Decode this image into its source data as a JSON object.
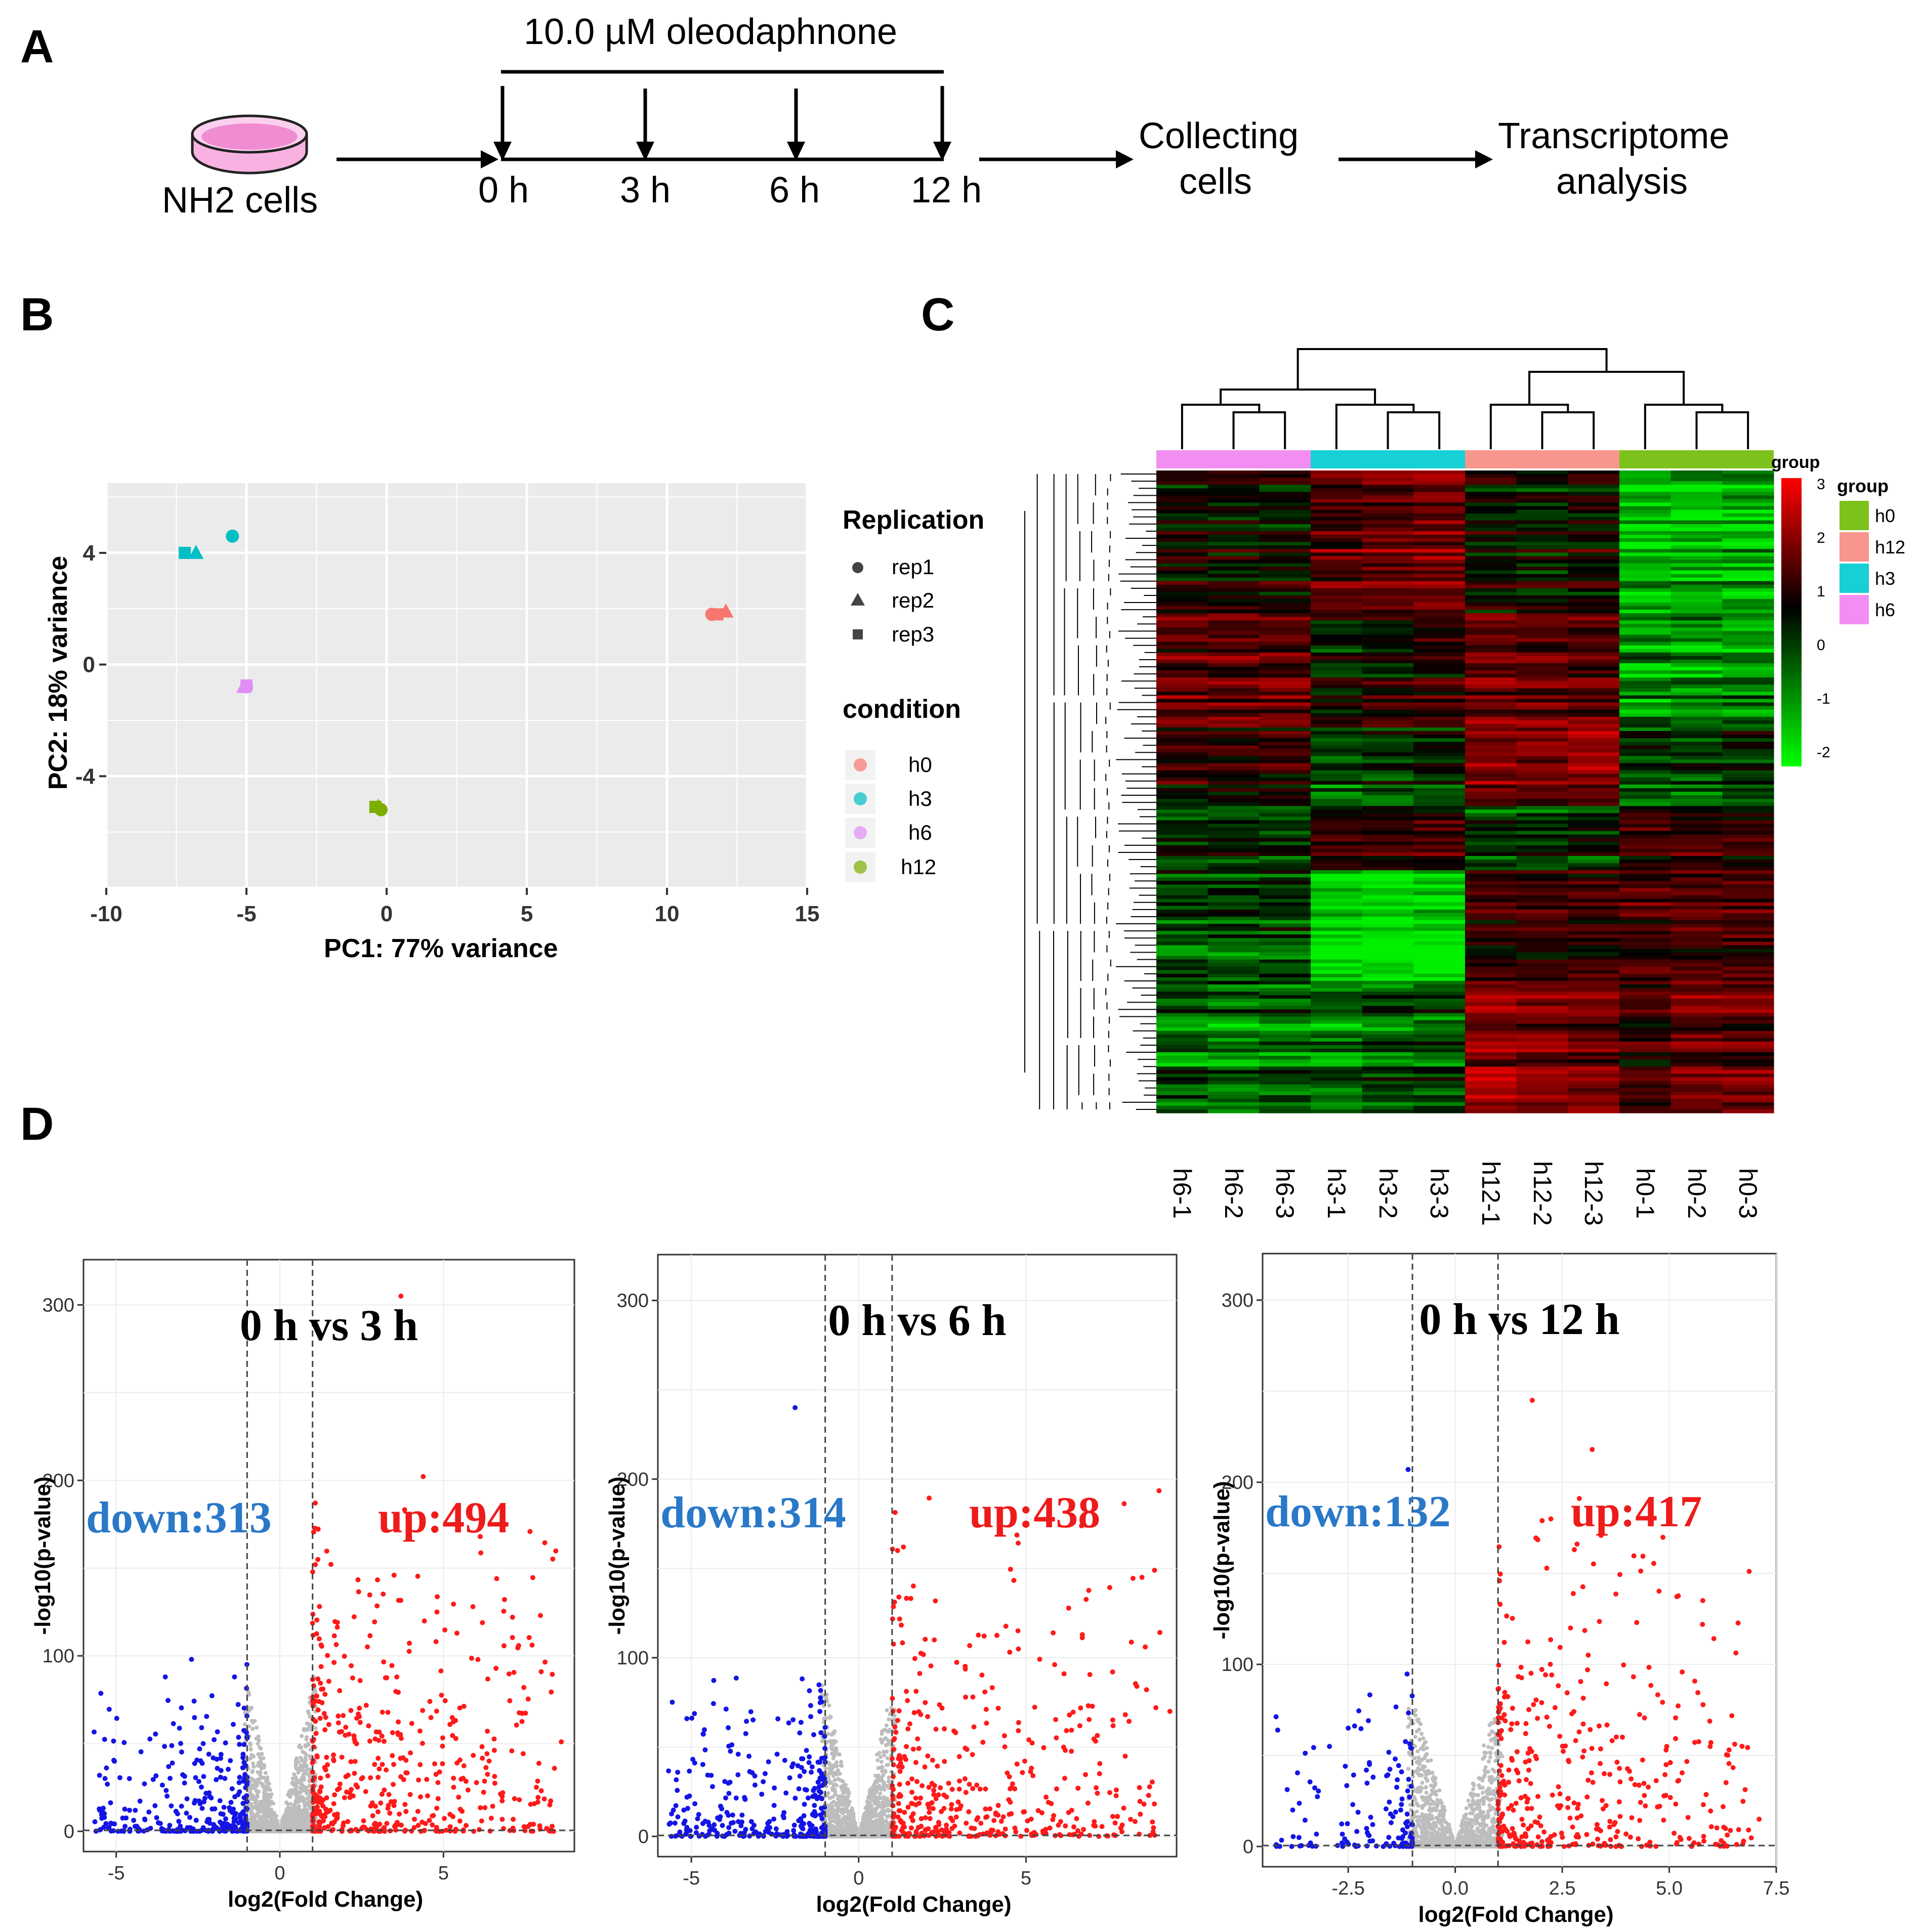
{
  "panels": {
    "A": "A",
    "B": "B",
    "C": "C",
    "D": "D"
  },
  "workflow": {
    "drug_label": "10.0 µM oleodaphnone",
    "cells_label": "NH2 cells",
    "timepoints": [
      "0 h",
      "3 h",
      "6 h",
      "12 h"
    ],
    "step1": [
      "Collecting",
      "cells"
    ],
    "step2": [
      "Transcriptome",
      "analysis"
    ],
    "dish_color": "#e85fc0"
  },
  "pca": {
    "xlabel": "PC1: 77% variance",
    "ylabel": "PC2: 18% variance",
    "xticks": [
      "-10",
      "-5",
      "0",
      "5",
      "10",
      "15"
    ],
    "yticks": [
      "4",
      "0",
      "-4"
    ],
    "legend_replication_title": "Replication",
    "replication": [
      "rep1",
      "rep2",
      "rep3"
    ],
    "legend_condition_title": "condition",
    "conditions": [
      {
        "name": "h0",
        "color": "#f8766d"
      },
      {
        "name": "h3",
        "color": "#00bfc4"
      },
      {
        "name": "h6",
        "color": "#e08ef5"
      },
      {
        "name": "h12",
        "color": "#7cae00"
      }
    ]
  },
  "heatmap": {
    "columns": [
      "h6-1",
      "h6-2",
      "h6-3",
      "h3-1",
      "h3-2",
      "h3-3",
      "h12-1",
      "h12-2",
      "h12-3",
      "h0-1",
      "h0-2",
      "h0-3"
    ],
    "group_label": "group",
    "scale_title": "group",
    "scale_ticks": [
      "3",
      "2",
      "1",
      "0",
      "-1",
      "-2"
    ],
    "groups": [
      {
        "name": "h0",
        "color": "#7cc21c"
      },
      {
        "name": "h12",
        "color": "#f7968c"
      },
      {
        "name": "h3",
        "color": "#16d0d6"
      },
      {
        "name": "h6",
        "color": "#f28ef2"
      }
    ]
  },
  "volcano": [
    {
      "title": "0 h vs 3 h",
      "down": "down:313",
      "up": "up:494",
      "xticks": [
        "-5",
        "0",
        "5"
      ],
      "yticks": [
        "0",
        "100",
        "200",
        "300"
      ]
    },
    {
      "title": "0 h vs 6 h",
      "down": "down:314",
      "up": "up:438",
      "xticks": [
        "-5",
        "0",
        "5"
      ],
      "yticks": [
        "0",
        "100",
        "200",
        "300"
      ]
    },
    {
      "title": "0 h vs 12 h",
      "down": "down:132",
      "up": "up:417",
      "xticks": [
        "-2.5",
        "0.0",
        "2.5",
        "5.0",
        "7.5"
      ],
      "yticks": [
        "0",
        "100",
        "200",
        "300"
      ]
    }
  ],
  "volcano_labels": {
    "xlabel": "log2(Fold Change)",
    "ylabel": "-log10(p-value)"
  },
  "chart_data": [
    {
      "type": "scatter",
      "title": "",
      "xlabel": "PC1: 77% variance",
      "ylabel": "PC2: 18% variance",
      "xlim": [
        -10,
        15
      ],
      "ylim": [
        -8,
        6.5
      ],
      "series": [
        {
          "name": "h0",
          "points": [
            [
              11.6,
              1.8
            ],
            [
              12.1,
              1.9
            ],
            [
              11.8,
              1.8
            ]
          ]
        },
        {
          "name": "h3",
          "points": [
            [
              -5.5,
              4.6
            ],
            [
              -6.8,
              4.0
            ],
            [
              -7.2,
              4.0
            ]
          ]
        },
        {
          "name": "h6",
          "points": [
            [
              -5.0,
              -0.8
            ],
            [
              -5.1,
              -0.8
            ],
            [
              -5.0,
              -0.75
            ]
          ]
        },
        {
          "name": "h12",
          "points": [
            [
              -0.2,
              -5.2
            ],
            [
              -0.3,
              -5.1
            ],
            [
              -0.4,
              -5.1
            ]
          ]
        }
      ]
    },
    {
      "type": "heatmap",
      "title": "",
      "columns": [
        "h6-1",
        "h6-2",
        "h6-3",
        "h3-1",
        "h3-2",
        "h3-3",
        "h12-1",
        "h12-2",
        "h12-3",
        "h0-1",
        "h0-2",
        "h0-3"
      ],
      "color_scale": [
        -2,
        3
      ]
    },
    {
      "type": "scatter",
      "title": "0 h vs 3 h",
      "xlabel": "log2(Fold Change)",
      "ylabel": "-log10(p-value)",
      "xlim": [
        -6,
        9
      ],
      "ylim": [
        0,
        320
      ],
      "thresholds_x": [
        -1,
        1
      ],
      "down": 313,
      "up": 494,
      "highlights": [
        [
          -3.5,
          88
        ],
        [
          -2.7,
          98
        ],
        [
          4.8,
          125
        ],
        [
          5.9,
          128
        ],
        [
          8.6,
          51
        ],
        [
          3.7,
          305
        ]
      ]
    },
    {
      "type": "scatter",
      "title": "0 h vs 6 h",
      "xlabel": "log2(Fold Change)",
      "ylabel": "-log10(p-value)",
      "xlim": [
        -6,
        9.5
      ],
      "ylim": [
        0,
        320
      ],
      "thresholds_x": [
        -1,
        1
      ],
      "down": 314,
      "up": 438,
      "highlights": [
        [
          -1.9,
          240
        ],
        [
          -3.6,
          46
        ],
        [
          5.6,
          22
        ],
        [
          7.7,
          26
        ],
        [
          9.3,
          70
        ]
      ]
    },
    {
      "type": "scatter",
      "title": "0 h vs 12 h",
      "xlabel": "log2(Fold Change)",
      "ylabel": "-log10(p-value)",
      "xlim": [
        -4.5,
        7.5
      ],
      "ylim": [
        0,
        320
      ],
      "thresholds_x": [
        -1,
        1
      ],
      "down": 132,
      "up": 417,
      "highlights": [
        [
          -1.1,
          207
        ],
        [
          1.8,
          245
        ],
        [
          3.2,
          218
        ],
        [
          -2.5,
          65
        ],
        [
          7.1,
          15
        ]
      ]
    }
  ]
}
